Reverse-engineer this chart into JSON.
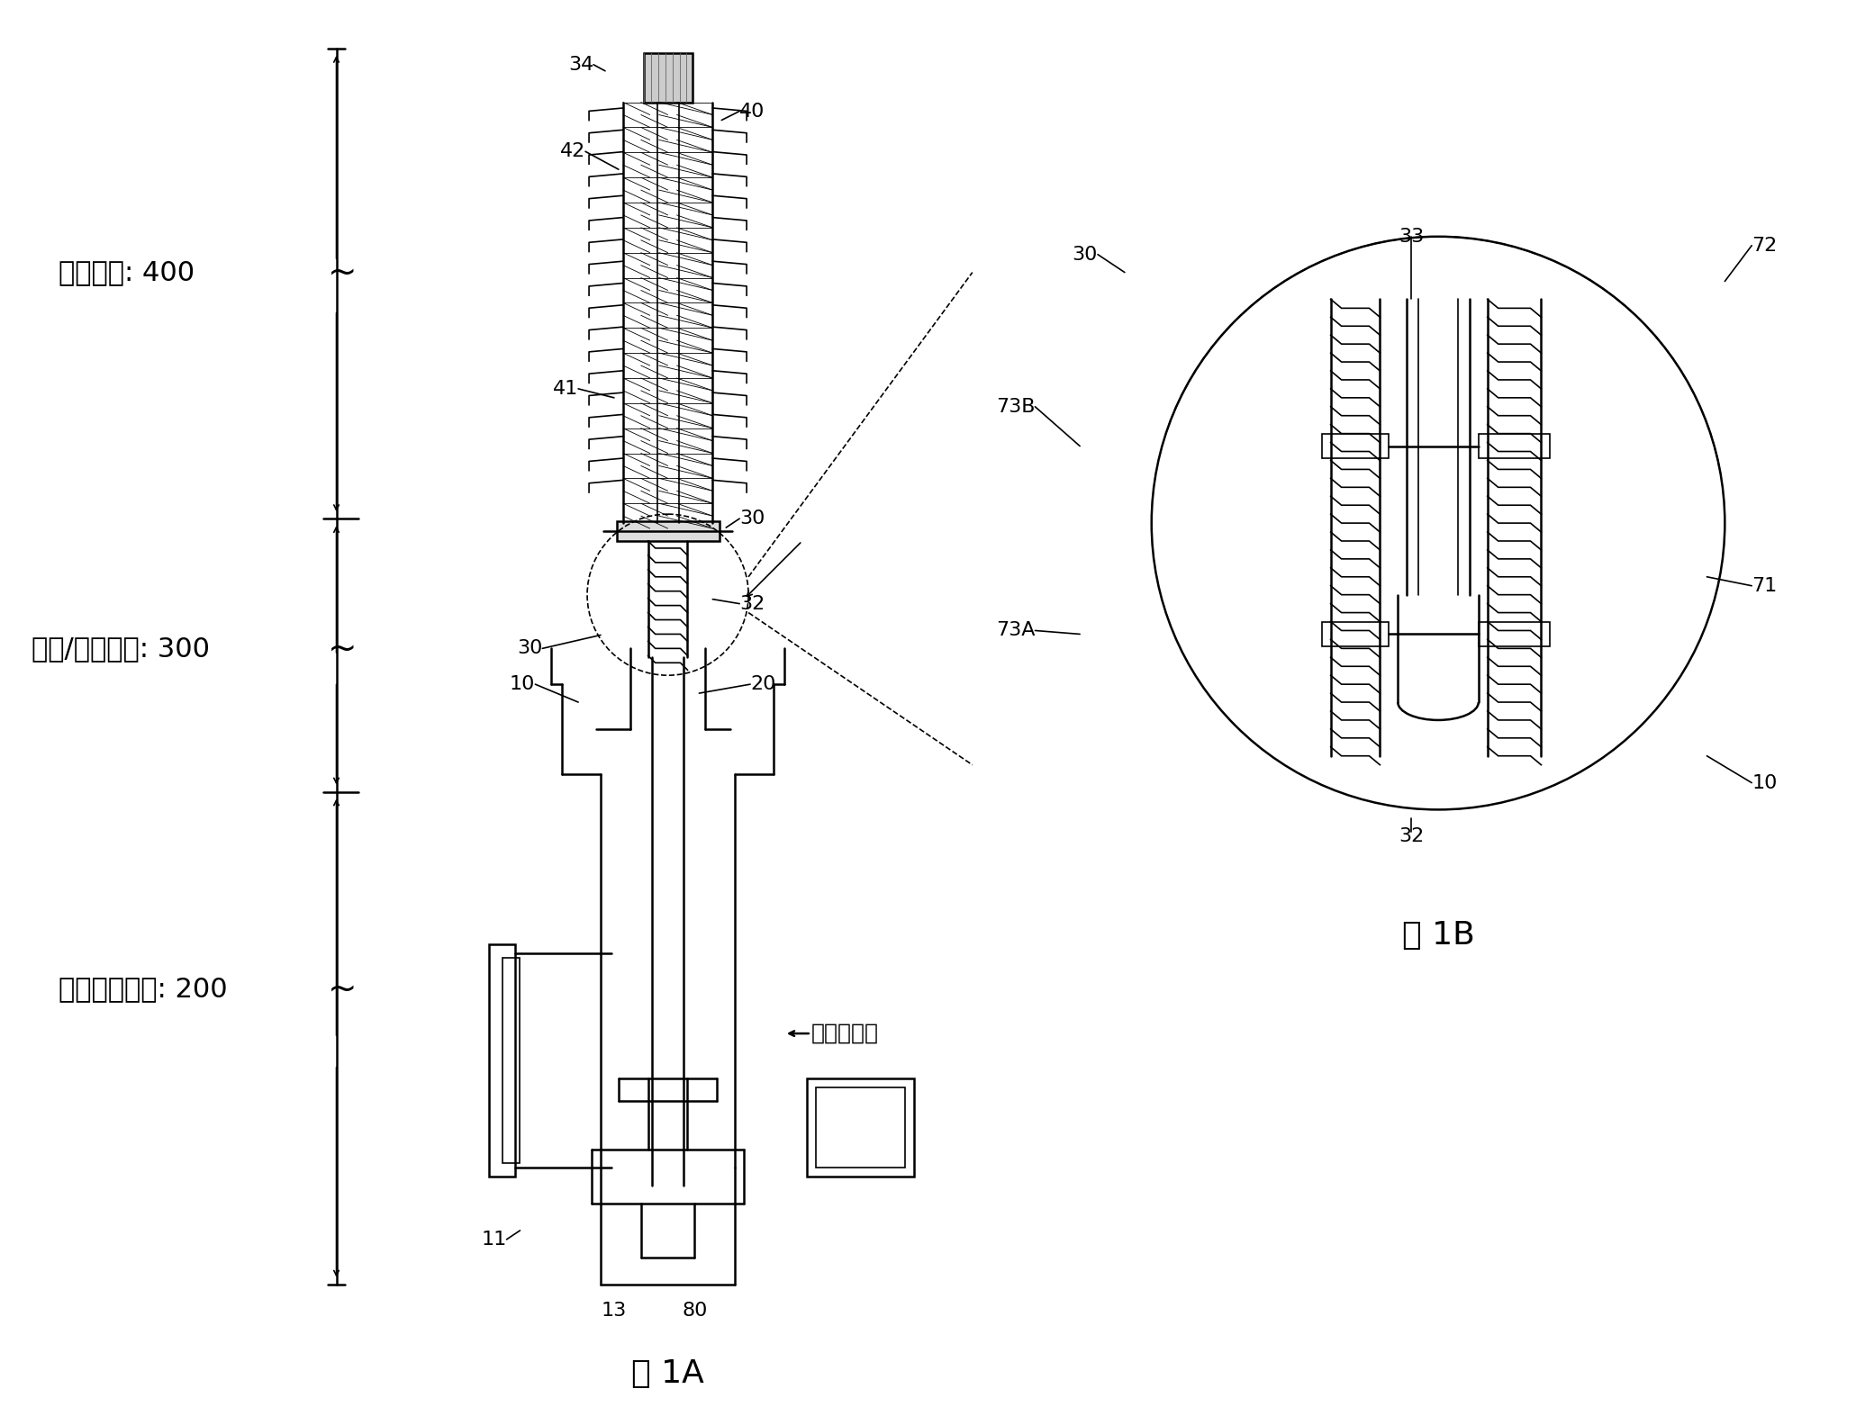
{
  "bg_color": "#ffffff",
  "fig_width": 20.81,
  "fig_height": 15.73,
  "title_1A": "图 1A",
  "title_1B": "图 1B",
  "label_400": "室温部分: 400",
  "label_300": "连接/维热部分: 300",
  "label_200": "非常低温部分: 200",
  "arrow_label": "至超导电缆"
}
